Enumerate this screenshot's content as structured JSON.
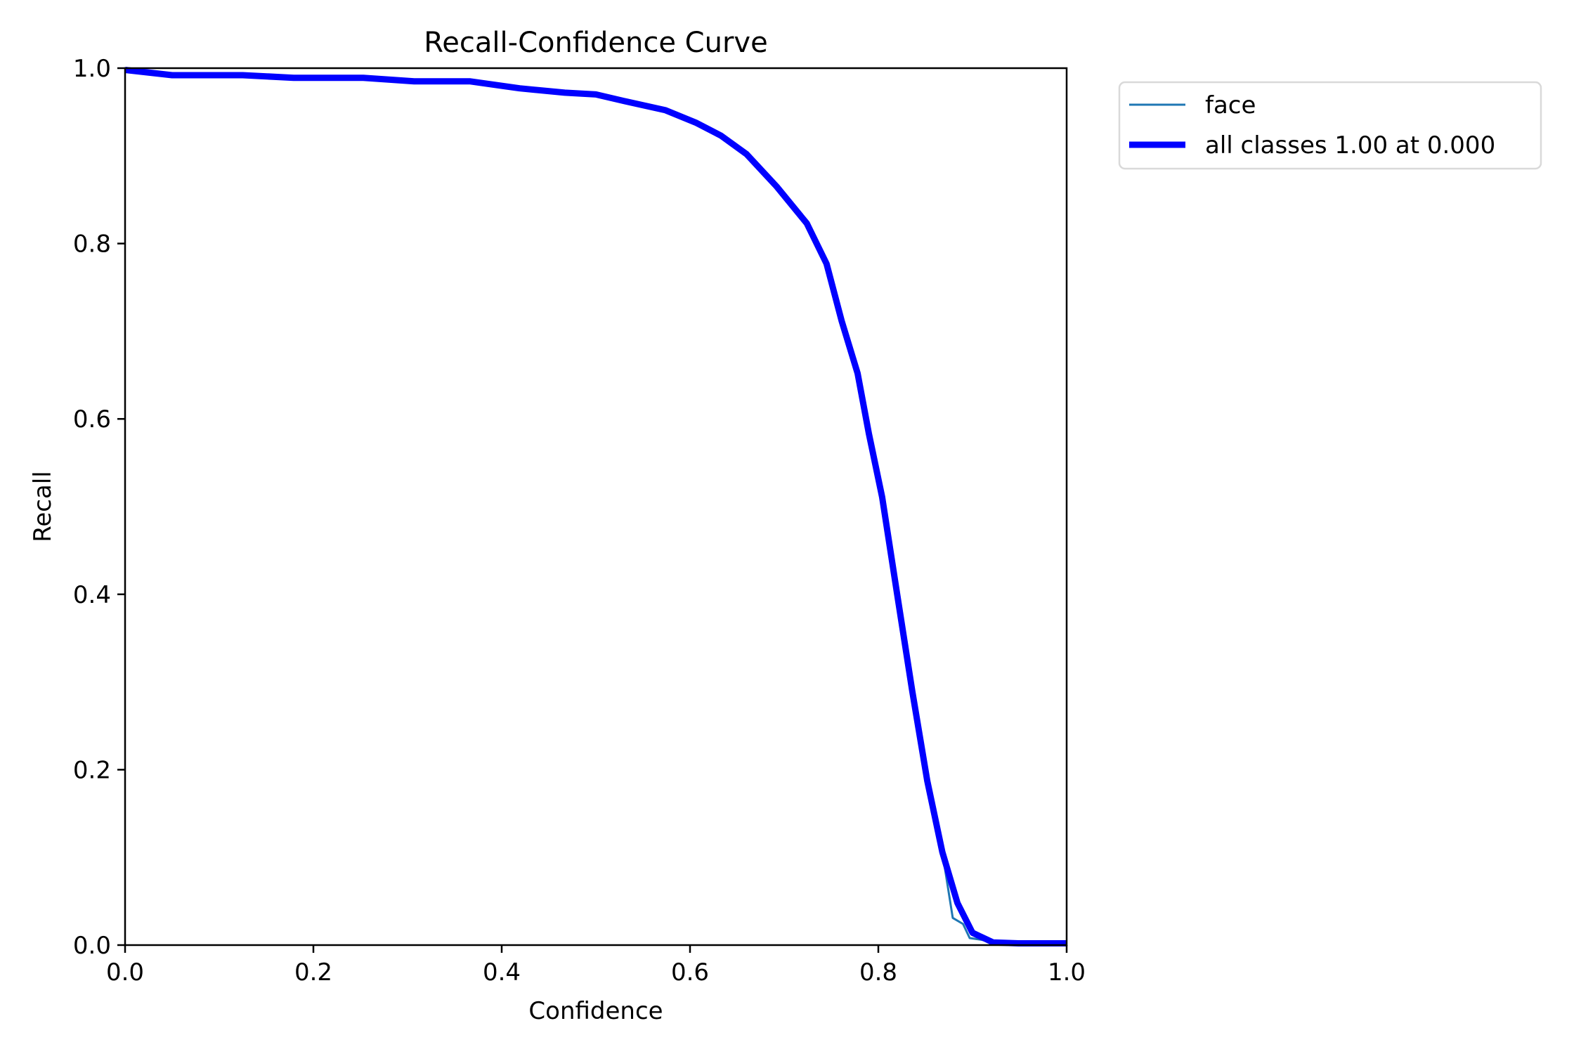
{
  "chart_data": {
    "type": "line",
    "title": "Recall-Confidence Curve",
    "xlabel": "Confidence",
    "ylabel": "Recall",
    "xlim": [
      0.0,
      1.0
    ],
    "ylim": [
      0.0,
      1.0
    ],
    "xticks": [
      "0.0",
      "0.2",
      "0.4",
      "0.6",
      "0.8",
      "1.0"
    ],
    "yticks": [
      "0.0",
      "0.2",
      "0.4",
      "0.6",
      "0.8",
      "1.0"
    ],
    "grid": false,
    "legend_position": "outside upper right",
    "series": [
      {
        "name": "face",
        "color": "#1f77b4",
        "line_width": 3,
        "x": [
          0.0,
          0.05,
          0.125,
          0.179,
          0.253,
          0.307,
          0.366,
          0.419,
          0.467,
          0.5,
          0.532,
          0.574,
          0.606,
          0.633,
          0.66,
          0.692,
          0.724,
          0.745,
          0.761,
          0.778,
          0.79,
          0.804,
          0.82,
          0.836,
          0.852,
          0.868,
          0.879,
          0.89,
          0.897,
          0.91,
          0.922,
          0.949,
          1.0
        ],
        "y": [
          0.998,
          0.992,
          0.992,
          0.989,
          0.989,
          0.985,
          0.985,
          0.977,
          0.972,
          0.97,
          0.962,
          0.952,
          0.938,
          0.923,
          0.902,
          0.865,
          0.823,
          0.777,
          0.712,
          0.652,
          0.583,
          0.511,
          0.4,
          0.29,
          0.187,
          0.106,
          0.031,
          0.024,
          0.008,
          0.006,
          0.003,
          0.002,
          0.002
        ]
      },
      {
        "name": "all classes 1.00 at 0.000",
        "color": "#0000ff",
        "line_width": 9,
        "x": [
          0.0,
          0.05,
          0.125,
          0.179,
          0.253,
          0.307,
          0.366,
          0.419,
          0.467,
          0.5,
          0.532,
          0.574,
          0.606,
          0.633,
          0.66,
          0.692,
          0.724,
          0.745,
          0.761,
          0.778,
          0.79,
          0.804,
          0.82,
          0.836,
          0.852,
          0.868,
          0.884,
          0.9,
          0.922,
          0.949,
          1.0
        ],
        "y": [
          0.998,
          0.992,
          0.992,
          0.989,
          0.989,
          0.985,
          0.985,
          0.977,
          0.972,
          0.97,
          0.962,
          0.952,
          0.938,
          0.923,
          0.902,
          0.865,
          0.823,
          0.777,
          0.712,
          0.652,
          0.583,
          0.511,
          0.4,
          0.29,
          0.187,
          0.106,
          0.048,
          0.014,
          0.003,
          0.002,
          0.002
        ]
      }
    ]
  },
  "legend": {
    "items": [
      {
        "label": "face",
        "color": "#1f77b4",
        "line_width": 3
      },
      {
        "label": "all classes 1.00 at 0.000",
        "color": "#0000ff",
        "line_width": 9
      }
    ]
  },
  "colors": {
    "axis": "#000000",
    "background": "#ffffff",
    "legend_border": "#d9d9d9"
  }
}
